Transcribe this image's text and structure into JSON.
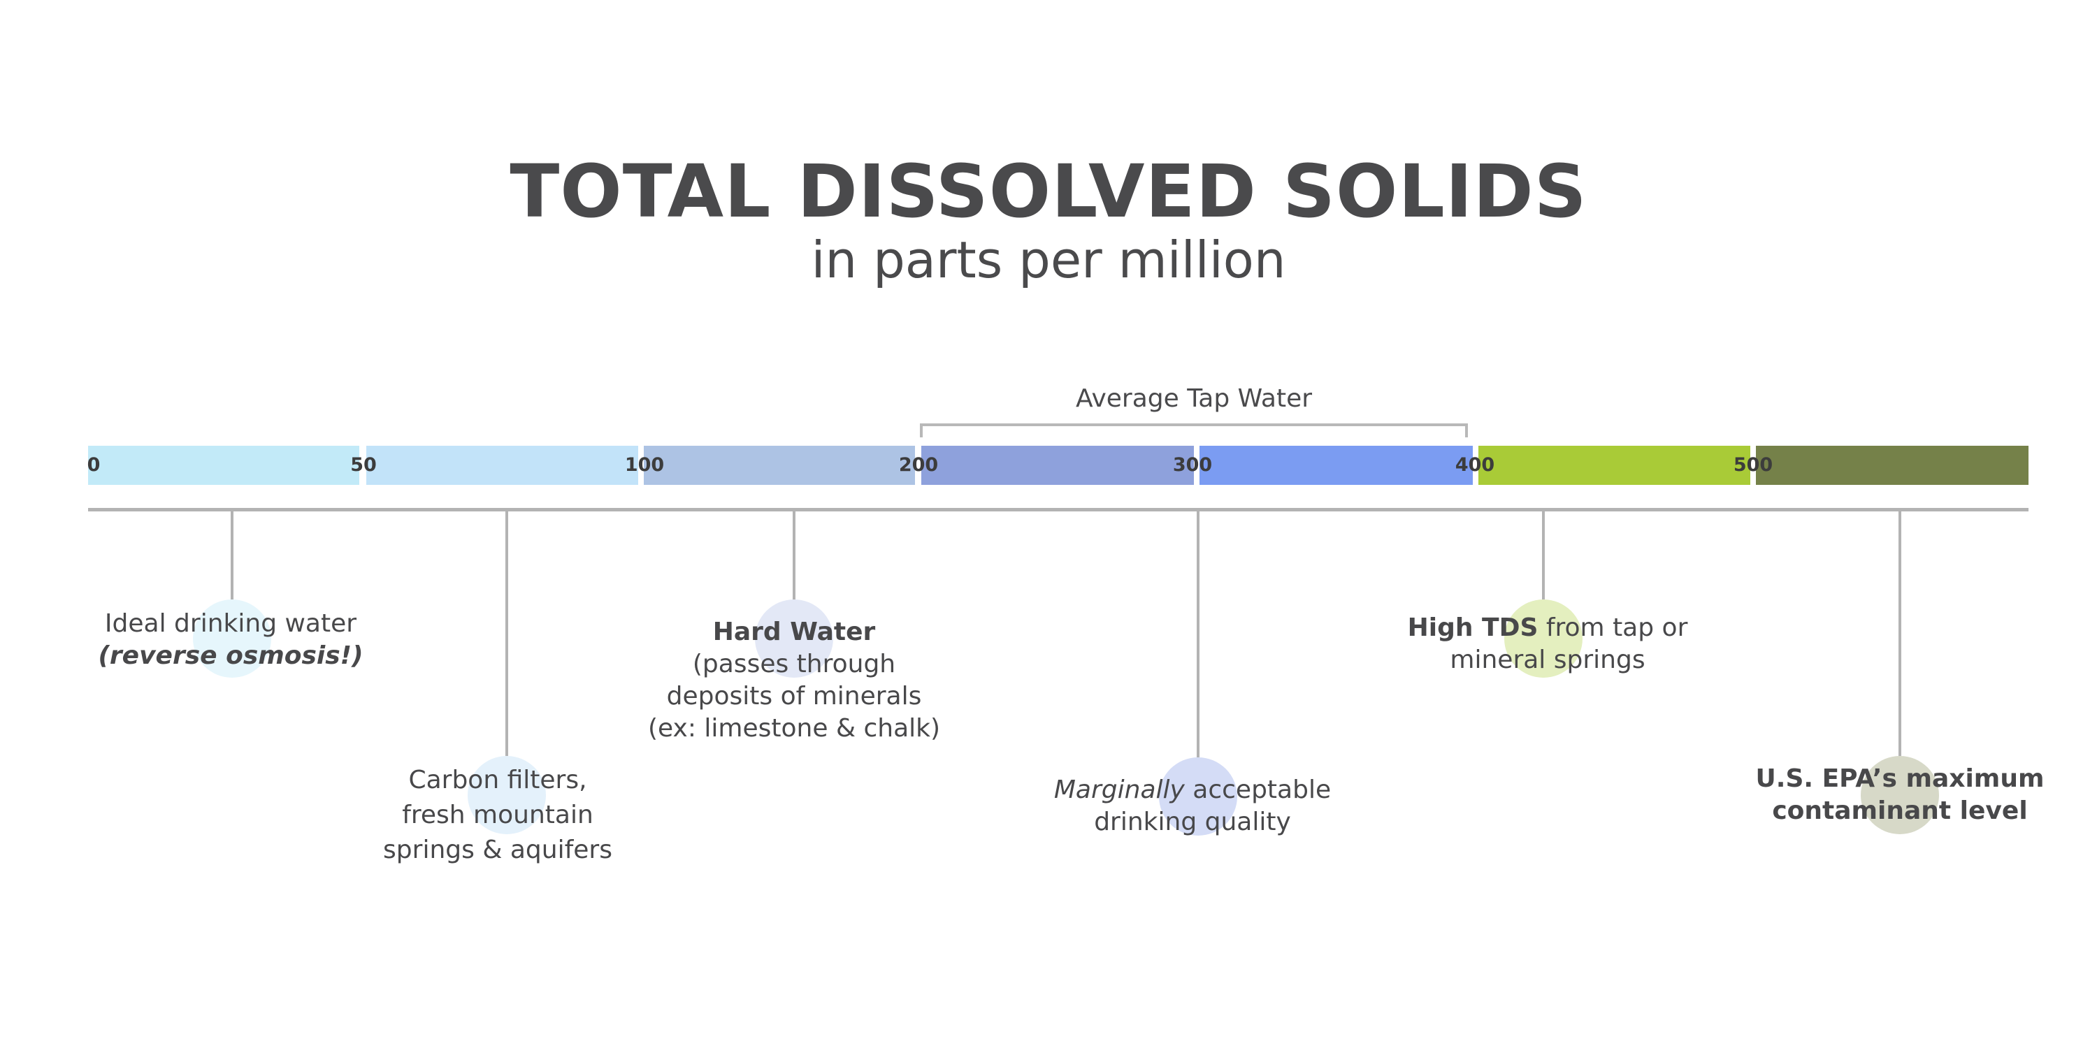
{
  "title": "TOTAL DISSOLVED SOLIDS",
  "subtitle": "in parts per million",
  "average_tap_water": "Average Tap Water",
  "scale": {
    "ticks": [
      "0",
      "50",
      "100",
      "200",
      "300",
      "400",
      "500"
    ],
    "colors": [
      "#c2eaf8",
      "#c2e3f9",
      "#adc3e4",
      "#8ea1dc",
      "#7b9cf2",
      "#a9cb37",
      "#758149"
    ]
  },
  "callouts": {
    "ideal": {
      "line1": "Ideal drinking water",
      "line2": "(reverse osmosis!)"
    },
    "carbon": {
      "line1": "Carbon filters,",
      "line2": "fresh mountain",
      "line3": "springs & aquifers"
    },
    "hard": {
      "title": "Hard Water",
      "line1": "(passes through",
      "line2": "deposits of minerals",
      "line3": "(ex: limestone & chalk)"
    },
    "marginal": {
      "emph": "Marginally",
      "rest": " acceptable",
      "line2": "drinking quality"
    },
    "high": {
      "emph": "High TDS",
      "rest": " from tap or",
      "line2": "mineral springs"
    },
    "epa": {
      "line1": "U.S. EPA’s maximum",
      "line2": "contaminant level"
    }
  }
}
